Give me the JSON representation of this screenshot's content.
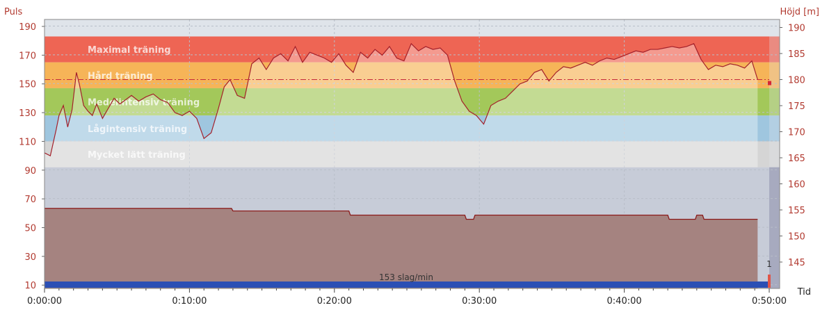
{
  "chart_data": {
    "type": "area",
    "ylabel_left": "Puls",
    "ylabel_right": "Höjd [m]",
    "xlabel": "Tid",
    "y_left_ticks": [
      10,
      30,
      50,
      70,
      90,
      110,
      130,
      150,
      170,
      190
    ],
    "y_left_range": [
      0,
      195
    ],
    "y_right_ticks": [
      145,
      150,
      155,
      160,
      165,
      170,
      175,
      180,
      185,
      190
    ],
    "x_ticks": [
      "0:00:00",
      "0:10:00",
      "0:20:00",
      "0:30:00",
      "0:40:00",
      "0:50:00"
    ],
    "x_range_minutes": [
      0,
      50
    ],
    "zones": [
      {
        "name": "Maximal träning",
        "from": 165,
        "to": 183,
        "color": "#ee6554"
      },
      {
        "name": "Hård träning",
        "from": 147,
        "to": 165,
        "color": "#f6b458"
      },
      {
        "name": "Medelintensiv träning",
        "from": 128,
        "to": 147,
        "color": "#a3c85a"
      },
      {
        "name": "Lågintensiv träning",
        "from": 110,
        "to": 128,
        "color": "#9fc6df"
      },
      {
        "name": "Mycket lätt träning",
        "from": 92,
        "to": 110,
        "color": "#d5d5d5"
      }
    ],
    "avg_pulse": 153,
    "avg_label": "153 slag/min",
    "marker_label": "1",
    "pulse_series": {
      "name": "Puls",
      "x_minutes": [
        0,
        0.4,
        0.8,
        1.0,
        1.3,
        1.6,
        1.9,
        2.2,
        2.4,
        2.7,
        3.0,
        3.3,
        3.6,
        4.0,
        4.4,
        4.8,
        5.2,
        5.6,
        6.0,
        6.5,
        7.0,
        7.5,
        8.0,
        8.5,
        9.0,
        9.5,
        10.0,
        10.5,
        11.0,
        11.5,
        12.0,
        12.4,
        12.8,
        13.3,
        13.8,
        14.3,
        14.8,
        15.3,
        15.8,
        16.3,
        16.8,
        17.3,
        17.8,
        18.3,
        18.8,
        19.3,
        19.8,
        20.3,
        20.8,
        21.3,
        21.8,
        22.3,
        22.8,
        23.3,
        23.8,
        24.3,
        24.8,
        25.3,
        25.8,
        26.3,
        26.8,
        27.3,
        27.8,
        28.3,
        28.8,
        29.3,
        29.8,
        30.3,
        30.8,
        31.3,
        31.8,
        32.3,
        32.8,
        33.3,
        33.8,
        34.3,
        34.8,
        35.3,
        35.8,
        36.3,
        36.8,
        37.3,
        37.8,
        38.3,
        38.8,
        39.3,
        39.8,
        40.3,
        40.8,
        41.3,
        41.8,
        42.3,
        42.8,
        43.3,
        43.8,
        44.3,
        44.8,
        45.3,
        45.8,
        46.3,
        46.8,
        47.3,
        47.8,
        48.3,
        48.8,
        49.2
      ],
      "values": [
        102,
        100,
        118,
        128,
        135,
        120,
        132,
        158,
        150,
        135,
        131,
        128,
        136,
        126,
        133,
        140,
        136,
        139,
        142,
        138,
        141,
        143,
        139,
        137,
        130,
        128,
        131,
        126,
        112,
        116,
        133,
        148,
        153,
        142,
        140,
        164,
        168,
        160,
        168,
        171,
        166,
        176,
        165,
        172,
        170,
        168,
        165,
        171,
        163,
        158,
        172,
        168,
        174,
        170,
        176,
        168,
        166,
        178,
        173,
        176,
        174,
        175,
        170,
        152,
        138,
        131,
        128,
        122,
        135,
        138,
        140,
        145,
        150,
        152,
        158,
        160,
        152,
        158,
        162,
        161,
        163,
        165,
        163,
        166,
        168,
        167,
        169,
        171,
        173,
        172,
        174,
        174,
        175,
        176,
        175,
        176,
        178,
        167,
        160,
        163,
        162,
        164,
        163,
        161,
        166,
        153
      ]
    },
    "elevation_series": {
      "name": "Höjd",
      "x_minutes": [
        0,
        12.9,
        13.0,
        21.0,
        21.1,
        29.0,
        29.1,
        29.6,
        29.7,
        43.0,
        43.1,
        44.9,
        45.0,
        45.4,
        45.5,
        49.2
      ],
      "values": [
        155.3,
        155.3,
        154.8,
        154.8,
        154.0,
        154.0,
        153.2,
        153.2,
        154.0,
        154.0,
        153.2,
        153.2,
        154.0,
        154.0,
        153.2,
        153.2
      ]
    }
  }
}
